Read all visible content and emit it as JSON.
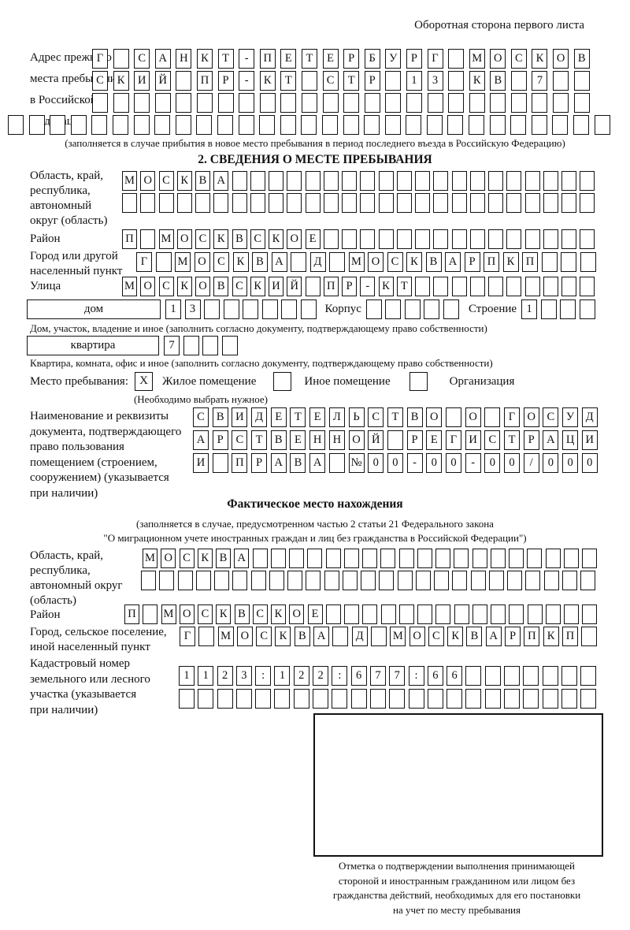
{
  "header": {
    "title": "Оборотная сторона первого листа"
  },
  "prev_address": {
    "label_lines": [
      "Адрес прежнего",
      "места пребывания",
      "в Российской",
      "Федерации"
    ],
    "rows": [
      [
        "Г",
        "",
        "С",
        "А",
        "Н",
        "К",
        "Т",
        "-",
        "П",
        "Е",
        "Т",
        "Е",
        "Р",
        "Б",
        "У",
        "Р",
        "Г",
        "",
        "М",
        "О",
        "С",
        "К",
        "О",
        "В"
      ],
      [
        "С",
        "К",
        "И",
        "Й",
        "",
        "П",
        "Р",
        "-",
        "К",
        "Т",
        "",
        "С",
        "Т",
        "Р",
        "",
        "1",
        "3",
        "",
        "К",
        "В",
        "",
        "7",
        "",
        ""
      ],
      [
        "",
        "",
        "",
        "",
        "",
        "",
        "",
        "",
        "",
        "",
        "",
        "",
        "",
        "",
        "",
        "",
        "",
        "",
        "",
        "",
        "",
        "",
        "",
        ""
      ]
    ],
    "full_row": [
      "",
      "",
      "",
      "",
      "",
      "",
      "",
      "",
      "",
      "",
      "",
      "",
      "",
      "",
      "",
      "",
      "",
      "",
      "",
      "",
      "",
      "",
      "",
      "",
      "",
      "",
      "",
      "",
      ""
    ],
    "note": "(заполняется в случае прибытия в новое место пребывания в период последнего въезда в Российскую Федерацию)"
  },
  "section2": {
    "title": "2. СВЕДЕНИЯ О МЕСТЕ ПРЕБЫВАНИЯ",
    "region": {
      "label_lines": [
        "Область, край,",
        "республика,",
        "автономный",
        "округ (область)"
      ],
      "rows": [
        [
          "М",
          "О",
          "С",
          "К",
          "В",
          "А",
          "",
          "",
          "",
          "",
          "",
          "",
          "",
          "",
          "",
          "",
          "",
          "",
          "",
          "",
          "",
          "",
          "",
          "",
          "",
          ""
        ],
        [
          "",
          "",
          "",
          "",
          "",
          "",
          "",
          "",
          "",
          "",
          "",
          "",
          "",
          "",
          "",
          "",
          "",
          "",
          "",
          "",
          "",
          "",
          "",
          "",
          "",
          ""
        ]
      ]
    },
    "district": {
      "label": "Район",
      "row": [
        "П",
        "",
        "М",
        "О",
        "С",
        "К",
        "В",
        "С",
        "К",
        "О",
        "Е",
        "",
        "",
        "",
        "",
        "",
        "",
        "",
        "",
        "",
        "",
        "",
        "",
        "",
        "",
        ""
      ]
    },
    "city": {
      "label_lines": [
        "Город или другой",
        "населенный пункт"
      ],
      "row": [
        "Г",
        "",
        "М",
        "О",
        "С",
        "К",
        "В",
        "А",
        "",
        "Д",
        "",
        "М",
        "О",
        "С",
        "К",
        "В",
        "А",
        "Р",
        "П",
        "К",
        "П",
        "",
        "",
        ""
      ]
    },
    "street": {
      "label": "Улица",
      "row": [
        "М",
        "О",
        "С",
        "К",
        "О",
        "В",
        "С",
        "К",
        "И",
        "Й",
        "",
        "П",
        "Р",
        "-",
        "К",
        "Т",
        "",
        "",
        "",
        "",
        "",
        "",
        "",
        "",
        "",
        ""
      ]
    },
    "house": {
      "box_label": "дом",
      "cells": [
        "1",
        "3",
        "",
        "",
        "",
        "",
        "",
        ""
      ],
      "korpus_label": "Корпус",
      "korpus_cells": [
        "",
        "",
        "",
        "",
        ""
      ],
      "stroenie_label": "Строение",
      "stroenie_cells": [
        "1",
        "",
        "",
        ""
      ]
    },
    "house_note": "Дом, участок, владение и иное (заполнить согласно документу, подтверждающему право собственности)",
    "apartment": {
      "box_label": "квартира",
      "cells": [
        "7",
        "",
        "",
        ""
      ]
    },
    "apartment_note": "Квартира, комната, офис и иное (заполнить согласно документу, подтверждающему право собственности)",
    "stay_type": {
      "label": "Место пребывания:",
      "options": [
        {
          "mark": "X",
          "label": "Жилое помещение"
        },
        {
          "mark": "",
          "label": "Иное помещение"
        },
        {
          "mark": "",
          "label": "Организация"
        }
      ],
      "note": "(Необходимо выбрать нужное)"
    },
    "document": {
      "label_lines": [
        "Наименование и реквизиты",
        "документа, подтверждающего",
        "право пользования",
        "помещением (строением,",
        "сооружением) (указывается",
        "при наличии)"
      ],
      "rows": [
        [
          "С",
          "В",
          "И",
          "Д",
          "Е",
          "Т",
          "Е",
          "Л",
          "Ь",
          "С",
          "Т",
          "В",
          "О",
          "",
          "О",
          "",
          "Г",
          "О",
          "С",
          "У",
          "Д"
        ],
        [
          "А",
          "Р",
          "С",
          "Т",
          "В",
          "Е",
          "Н",
          "Н",
          "О",
          "Й",
          "",
          "Р",
          "Е",
          "Г",
          "И",
          "С",
          "Т",
          "Р",
          "А",
          "Ц",
          "И"
        ],
        [
          "И",
          "",
          "П",
          "Р",
          "А",
          "В",
          "А",
          "",
          "№",
          "0",
          "0",
          "-",
          "0",
          "0",
          "-",
          "0",
          "0",
          "/",
          "0",
          "0",
          "0"
        ]
      ]
    }
  },
  "actual_location": {
    "title": "Фактическое место нахождения",
    "note_lines": [
      "(заполняется в случае, предусмотренном частью 2 статьи 21 Федерального закона",
      "\"О миграционном учете иностранных граждан и лиц без гражданства в Российской Федерации\")"
    ],
    "region": {
      "label_lines": [
        "Область, край,",
        "республика,",
        "автономный округ",
        "(область)"
      ],
      "rows": [
        [
          "М",
          "О",
          "С",
          "К",
          "В",
          "А",
          "",
          "",
          "",
          "",
          "",
          "",
          "",
          "",
          "",
          "",
          "",
          "",
          "",
          "",
          "",
          "",
          "",
          "",
          ""
        ],
        [
          "",
          "",
          "",
          "",
          "",
          "",
          "",
          "",
          "",
          "",
          "",
          "",
          "",
          "",
          "",
          "",
          "",
          "",
          "",
          "",
          "",
          "",
          "",
          "",
          ""
        ]
      ]
    },
    "district": {
      "label": "Район",
      "row": [
        "П",
        "",
        "М",
        "О",
        "С",
        "К",
        "В",
        "С",
        "К",
        "О",
        "Е",
        "",
        "",
        "",
        "",
        "",
        "",
        "",
        "",
        "",
        "",
        "",
        "",
        "",
        "",
        ""
      ]
    },
    "city": {
      "label_lines": [
        "Город, сельское поселение,",
        "иной населенный пункт"
      ],
      "row": [
        "Г",
        "",
        "М",
        "О",
        "С",
        "К",
        "В",
        "А",
        "",
        "Д",
        "",
        "М",
        "О",
        "С",
        "К",
        "В",
        "А",
        "Р",
        "П",
        "К",
        "П",
        ""
      ]
    },
    "cadastre": {
      "label_lines": [
        "Кадастровый номер",
        "земельного или лесного",
        "участка (указывается",
        "при наличии)"
      ],
      "rows": [
        [
          "1",
          "1",
          "2",
          "3",
          ":",
          "1",
          "2",
          "2",
          ":",
          "6",
          "7",
          "7",
          ":",
          "6",
          "6",
          "",
          "",
          "",
          "",
          "",
          "",
          ""
        ],
        [
          "",
          "",
          "",
          "",
          "",
          "",
          "",
          "",
          "",
          "",
          "",
          "",
          "",
          "",
          "",
          "",
          "",
          "",
          "",
          "",
          "",
          ""
        ]
      ]
    }
  },
  "stamp": {
    "caption_lines": [
      "Отметка о подтверждении выполнения принимающей",
      "стороной и иностранным гражданином или лицом без",
      "гражданства действий, необходимых для его постановки",
      "на учет по месту пребывания"
    ]
  }
}
